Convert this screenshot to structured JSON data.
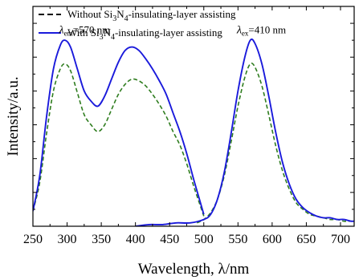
{
  "chart_data": {
    "type": "line",
    "xlabel": "Wavelength, λ/nm",
    "ylabel": "Intensity/a.u.",
    "xlim": [
      250,
      720
    ],
    "ylim": [
      0,
      1.3
    ],
    "x_ticks": [
      250,
      300,
      350,
      400,
      450,
      500,
      550,
      600,
      650,
      700
    ],
    "x_tick_labels": [
      "250",
      "300",
      "350",
      "400",
      "450",
      "500",
      "550",
      "600",
      "650",
      "700"
    ],
    "y_tick_labels": false,
    "grid": false,
    "legend": {
      "position": "top-left",
      "entries": [
        {
          "series_index": 0,
          "text_main": "Without Si",
          "sub1": "3",
          "mid": "N",
          "sub2": "4",
          "text_tail": "-insulating-layer assisting"
        },
        {
          "series_index": 1,
          "text_main": "With Si",
          "sub1": "3",
          "mid": "N",
          "sub2": "4",
          "text_tail": "-insulating-layer assisting"
        }
      ]
    },
    "annotations": [
      {
        "symbol": "λ",
        "subscript": "em",
        "value": "=570 nm",
        "x": 300,
        "y": 1.14
      },
      {
        "symbol": "λ",
        "subscript": "ex",
        "value": "=410 nm",
        "x": 560,
        "y": 1.14
      }
    ],
    "series": [
      {
        "name": "Without Si3N4-insulating-layer assisting",
        "color": "#2f7d1f",
        "style": "dashed",
        "groups": [
          {
            "x": [
              250,
              260,
              270,
              280,
              290,
              297,
              305,
              315,
              325,
              335,
              345,
              355,
              365,
              375,
              385,
              395,
              405,
              415,
              425,
              435,
              445,
              455,
              465,
              475,
              485,
              495,
              500
            ],
            "y": [
              0.09,
              0.26,
              0.55,
              0.8,
              0.93,
              0.96,
              0.92,
              0.79,
              0.66,
              0.6,
              0.56,
              0.6,
              0.69,
              0.78,
              0.84,
              0.87,
              0.86,
              0.83,
              0.78,
              0.72,
              0.65,
              0.56,
              0.48,
              0.37,
              0.24,
              0.12,
              0.06
            ]
          },
          {
            "x": [
              490,
              500,
              510,
              520,
              530,
              540,
              550,
              560,
              568,
              575,
              585,
              595,
              605,
              615,
              625,
              635,
              645,
              655,
              665,
              675,
              685,
              695,
              705,
              715,
              720
            ],
            "y": [
              0.02,
              0.04,
              0.08,
              0.16,
              0.3,
              0.5,
              0.71,
              0.88,
              0.96,
              0.94,
              0.83,
              0.66,
              0.48,
              0.33,
              0.22,
              0.14,
              0.1,
              0.07,
              0.06,
              0.05,
              0.04,
              0.04,
              0.03,
              0.03,
              0.03
            ]
          }
        ]
      },
      {
        "name": "With Si3N4-insulating-layer assisting",
        "color": "#1a1adb",
        "style": "solid",
        "groups": [
          {
            "x": [
              250,
              260,
              270,
              280,
              290,
              297,
              305,
              315,
              325,
              335,
              345,
              355,
              365,
              375,
              385,
              395,
              405,
              415,
              425,
              435,
              445,
              455,
              465,
              475,
              485,
              495,
              500
            ],
            "y": [
              0.09,
              0.3,
              0.65,
              0.93,
              1.07,
              1.1,
              1.06,
              0.93,
              0.8,
              0.74,
              0.71,
              0.77,
              0.87,
              0.97,
              1.04,
              1.06,
              1.04,
              0.99,
              0.93,
              0.86,
              0.78,
              0.67,
              0.56,
              0.43,
              0.28,
              0.14,
              0.07
            ]
          },
          {
            "x": [
              400,
              420,
              440,
              460,
              480,
              500,
              510,
              520,
              530,
              540,
              550,
              560,
              568,
              575,
              585,
              595,
              605,
              615,
              625,
              635,
              645,
              655,
              665,
              675,
              685,
              695,
              705,
              715,
              720
            ],
            "y": [
              0.0,
              0.01,
              0.01,
              0.02,
              0.02,
              0.04,
              0.07,
              0.16,
              0.32,
              0.55,
              0.8,
              1.0,
              1.1,
              1.08,
              0.96,
              0.77,
              0.56,
              0.38,
              0.25,
              0.16,
              0.11,
              0.08,
              0.06,
              0.05,
              0.05,
              0.04,
              0.04,
              0.03,
              0.03
            ]
          }
        ]
      }
    ]
  }
}
